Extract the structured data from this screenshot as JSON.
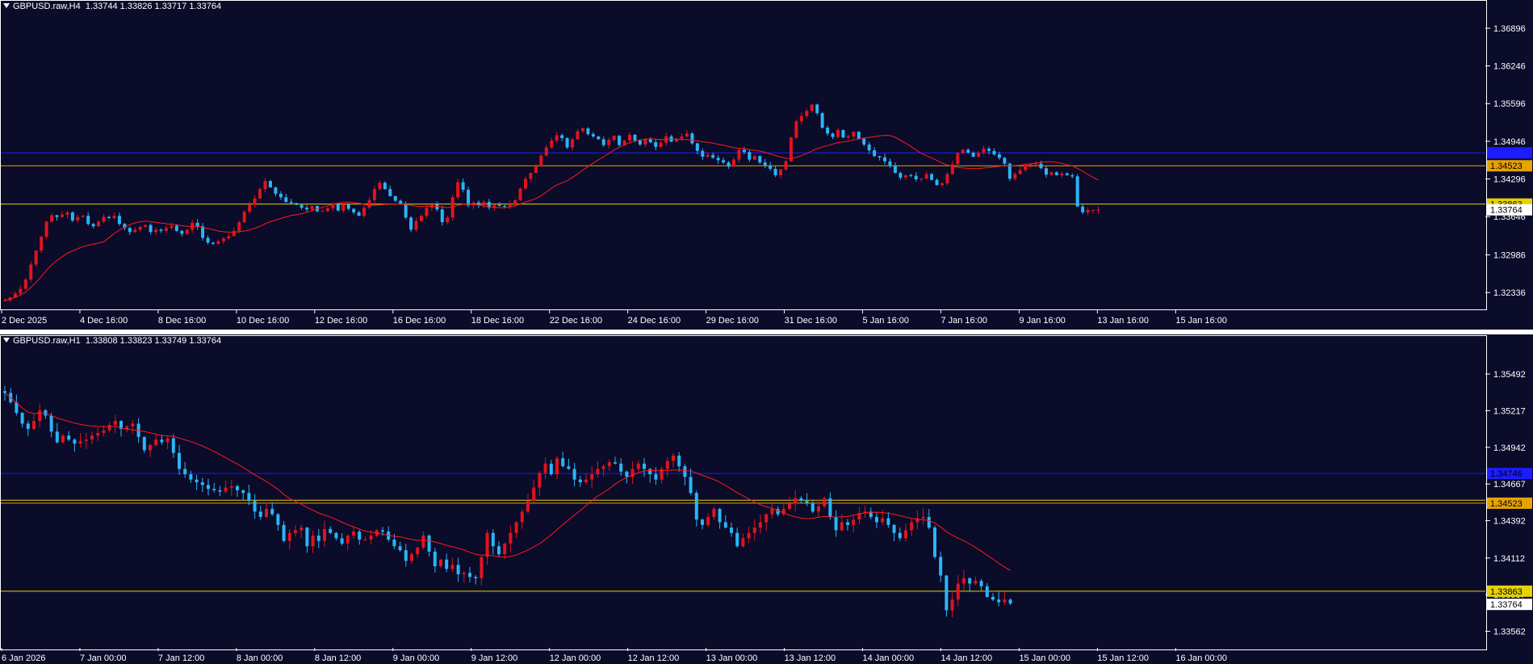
{
  "colors": {
    "background": "#0b0b2a",
    "bull": "#e0141e",
    "bear": "#29b6f6",
    "ma": "#ff1a1a",
    "yellow_line": "#e6d200",
    "orange_line": "#e6a200",
    "blue_line": "#1c1cff",
    "text": "#ffffff"
  },
  "chart_data": [
    {
      "type": "candlestick",
      "pane": "top",
      "symbol": "GBPUSD.raw,H4",
      "header": "GBPUSD.raw,H4  1.33744 1.33826 1.33717 1.33764",
      "y_ticks": [
        "1.36896",
        "1.36246",
        "1.35596",
        "1.34946",
        "1.34296",
        "1.33646",
        "1.32986",
        "1.32336"
      ],
      "x_ticks": [
        "2 Dec 2025",
        "4 Dec 16:00",
        "8 Dec 16:00",
        "10 Dec 16:00",
        "12 Dec 16:00",
        "16 Dec 16:00",
        "18 Dec 16:00",
        "22 Dec 16:00",
        "24 Dec 16:00",
        "29 Dec 16:00",
        "31 Dec 16:00",
        "5 Jan 16:00",
        "7 Jan 16:00",
        "9 Jan 16:00",
        "13 Jan 16:00",
        "15 Jan 16:00"
      ],
      "ylim": [
        1.3206,
        1.3716
      ],
      "levels": [
        {
          "price": 1.34746,
          "color": "blue",
          "label": ""
        },
        {
          "price": 1.34523,
          "color": "orange",
          "label": "1.34523"
        },
        {
          "price": 1.33863,
          "color": "yellow",
          "label": "1.33863"
        }
      ],
      "current_price": "1.33764",
      "closes": [
        1.322,
        1.3225,
        1.3232,
        1.324,
        1.3256,
        1.3282,
        1.3306,
        1.333,
        1.3356,
        1.3367,
        1.3364,
        1.3368,
        1.3372,
        1.3358,
        1.3364,
        1.3366,
        1.3352,
        1.3348,
        1.3356,
        1.3364,
        1.3362,
        1.3366,
        1.3352,
        1.3345,
        1.3338,
        1.3342,
        1.3347,
        1.335,
        1.3338,
        1.3342,
        1.334,
        1.3345,
        1.3349,
        1.334,
        1.3335,
        1.3342,
        1.3354,
        1.3348,
        1.3328,
        1.332,
        1.3318,
        1.3322,
        1.3327,
        1.3331,
        1.334,
        1.3355,
        1.3373,
        1.3385,
        1.3396,
        1.3412,
        1.3426,
        1.3415,
        1.3404,
        1.3398,
        1.339,
        1.3388,
        1.3385,
        1.338,
        1.3377,
        1.3383,
        1.3374,
        1.3374,
        1.3379,
        1.3387,
        1.3375,
        1.3386,
        1.3378,
        1.3372,
        1.3366,
        1.338,
        1.3393,
        1.3412,
        1.3423,
        1.3412,
        1.34,
        1.3392,
        1.3387,
        1.3363,
        1.3342,
        1.3357,
        1.3366,
        1.338,
        1.3386,
        1.3377,
        1.3355,
        1.3363,
        1.3398,
        1.3424,
        1.3411,
        1.3384,
        1.3389,
        1.3384,
        1.339,
        1.338,
        1.3385,
        1.3383,
        1.3382,
        1.3386,
        1.3393,
        1.3413,
        1.343,
        1.344,
        1.3452,
        1.347,
        1.3484,
        1.3496,
        1.3505,
        1.35,
        1.3484,
        1.3498,
        1.3512,
        1.3517,
        1.3507,
        1.3503,
        1.3498,
        1.3488,
        1.3497,
        1.3504,
        1.3488,
        1.3496,
        1.3506,
        1.3496,
        1.3489,
        1.3498,
        1.3493,
        1.3485,
        1.3492,
        1.3503,
        1.3494,
        1.3499,
        1.3503,
        1.3508,
        1.3491,
        1.3478,
        1.3468,
        1.3471,
        1.3466,
        1.3462,
        1.3458,
        1.3451,
        1.3463,
        1.348,
        1.3476,
        1.3463,
        1.3469,
        1.3458,
        1.3453,
        1.3447,
        1.3436,
        1.3446,
        1.346,
        1.3501,
        1.3529,
        1.3538,
        1.3547,
        1.3558,
        1.3543,
        1.3518,
        1.3508,
        1.3502,
        1.3514,
        1.3501,
        1.3503,
        1.3511,
        1.3499,
        1.3489,
        1.3479,
        1.3469,
        1.3467,
        1.346,
        1.3452,
        1.344,
        1.3432,
        1.3436,
        1.3435,
        1.3429,
        1.343,
        1.3438,
        1.3428,
        1.3419,
        1.3422,
        1.3438,
        1.3455,
        1.3474,
        1.348,
        1.3475,
        1.3468,
        1.3475,
        1.3482,
        1.3478,
        1.3472,
        1.3466,
        1.3456,
        1.343,
        1.3438,
        1.3445,
        1.3453,
        1.3455,
        1.3456,
        1.3448,
        1.3437,
        1.3441,
        1.3436,
        1.3439,
        1.3436,
        1.3434,
        1.3382,
        1.3372,
        1.3376,
        1.3376,
        1.3377
      ]
    },
    {
      "type": "candlestick",
      "pane": "bottom",
      "symbol": "GBPUSD.raw,H1",
      "header": "GBPUSD.raw,H1  1.33808 1.33823 1.33749 1.33764",
      "y_ticks": [
        "1.35492",
        "1.35217",
        "1.34942",
        "1.34667",
        "1.34392",
        "1.34112",
        "1.33837",
        "1.33562"
      ],
      "x_ticks": [
        "6 Jan 2026",
        "7 Jan 00:00",
        "7 Jan 12:00",
        "8 Jan 00:00",
        "8 Jan 12:00",
        "9 Jan 00:00",
        "9 Jan 12:00",
        "12 Jan 00:00",
        "12 Jan 12:00",
        "13 Jan 00:00",
        "13 Jan 12:00",
        "14 Jan 00:00",
        "14 Jan 12:00",
        "15 Jan 00:00",
        "15 Jan 12:00",
        "16 Jan 00:00"
      ],
      "ylim": [
        1.3345,
        1.3568
      ],
      "levels": [
        {
          "price": 1.34746,
          "color": "blue",
          "label": "1.34746"
        },
        {
          "price": 1.34545,
          "color": "yellow",
          "label": ""
        },
        {
          "price": 1.34523,
          "color": "orange",
          "label": "1.34523"
        },
        {
          "price": 1.33863,
          "color": "yellow",
          "label": "1.33863"
        }
      ],
      "current_price": "1.33764",
      "closes": [
        1.3535,
        1.3528,
        1.352,
        1.3512,
        1.3508,
        1.3514,
        1.3522,
        1.3518,
        1.3506,
        1.3498,
        1.3503,
        1.35,
        1.3497,
        1.3499,
        1.35,
        1.3503,
        1.3505,
        1.3507,
        1.3511,
        1.3514,
        1.3508,
        1.351,
        1.3512,
        1.3502,
        1.3492,
        1.3496,
        1.35,
        1.3498,
        1.3501,
        1.349,
        1.3478,
        1.3474,
        1.347,
        1.3468,
        1.3466,
        1.3463,
        1.3462,
        1.3461,
        1.3464,
        1.3465,
        1.3462,
        1.346,
        1.3454,
        1.3446,
        1.3442,
        1.3448,
        1.3444,
        1.3436,
        1.3424,
        1.343,
        1.3432,
        1.3434,
        1.342,
        1.3428,
        1.3424,
        1.3433,
        1.343,
        1.3426,
        1.3422,
        1.3428,
        1.3431,
        1.3425,
        1.3425,
        1.3428,
        1.3432,
        1.3431,
        1.3425,
        1.342,
        1.3417,
        1.3409,
        1.3414,
        1.3419,
        1.3428,
        1.3416,
        1.3405,
        1.341,
        1.3403,
        1.3406,
        1.3399,
        1.34,
        1.3397,
        1.3396,
        1.3412,
        1.343,
        1.342,
        1.3414,
        1.3422,
        1.343,
        1.3438,
        1.3446,
        1.3454,
        1.3464,
        1.3475,
        1.3482,
        1.3474,
        1.3486,
        1.348,
        1.3478,
        1.347,
        1.3468,
        1.347,
        1.3474,
        1.3478,
        1.348,
        1.3483,
        1.3482,
        1.3476,
        1.3472,
        1.3478,
        1.3482,
        1.3478,
        1.3474,
        1.347,
        1.3478,
        1.3484,
        1.3488,
        1.348,
        1.3472,
        1.346,
        1.344,
        1.3436,
        1.3442,
        1.3448,
        1.3438,
        1.3434,
        1.343,
        1.342,
        1.3426,
        1.343,
        1.3434,
        1.3438,
        1.3444,
        1.3448,
        1.3444,
        1.3448,
        1.3452,
        1.3456,
        1.3454,
        1.3452,
        1.3446,
        1.345,
        1.3456,
        1.3442,
        1.3432,
        1.3438,
        1.3436,
        1.344,
        1.3445,
        1.3446,
        1.3442,
        1.3438,
        1.3441,
        1.3436,
        1.343,
        1.3426,
        1.3432,
        1.3438,
        1.3441,
        1.3442,
        1.3434,
        1.3412,
        1.3398,
        1.3372,
        1.338,
        1.3392,
        1.3396,
        1.3392,
        1.3394,
        1.339,
        1.3382,
        1.338,
        1.3378,
        1.338,
        1.3377
      ]
    }
  ]
}
